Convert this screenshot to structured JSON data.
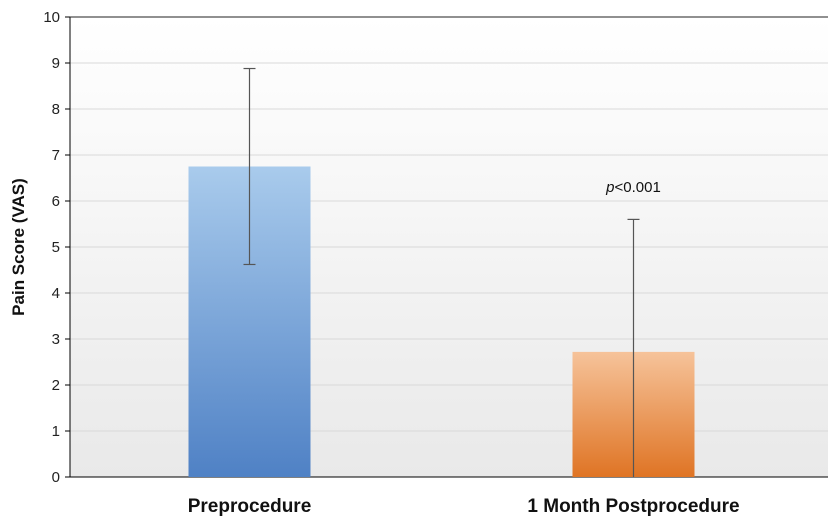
{
  "chart_data": {
    "type": "bar",
    "categories": [
      "Preprocedure",
      "1 Month Postprocedure"
    ],
    "values": [
      6.75,
      2.72
    ],
    "error_upper": [
      8.88,
      5.6
    ],
    "error_lower": [
      4.62,
      0
    ],
    "ylabel": "Pain Score (VAS)",
    "xlabel": "",
    "ylim": [
      0,
      10
    ],
    "yticks": [
      "0",
      "1",
      "2",
      "3",
      "4",
      "5",
      "6",
      "7",
      "8",
      "9",
      "10"
    ],
    "grid": true,
    "legend": "none",
    "annotation": {
      "prefix": "p",
      "text": "<0.001",
      "y": 6.3,
      "category_index": 1
    },
    "colors": {
      "bar_1_top": "#a9cbec",
      "bar_1_bottom": "#4f81c5",
      "bar_2_top": "#f6c39a",
      "bar_2_bottom": "#df7424",
      "grid": "#d9d9d9",
      "axis": "#000000",
      "error_bar": "#555555"
    }
  }
}
